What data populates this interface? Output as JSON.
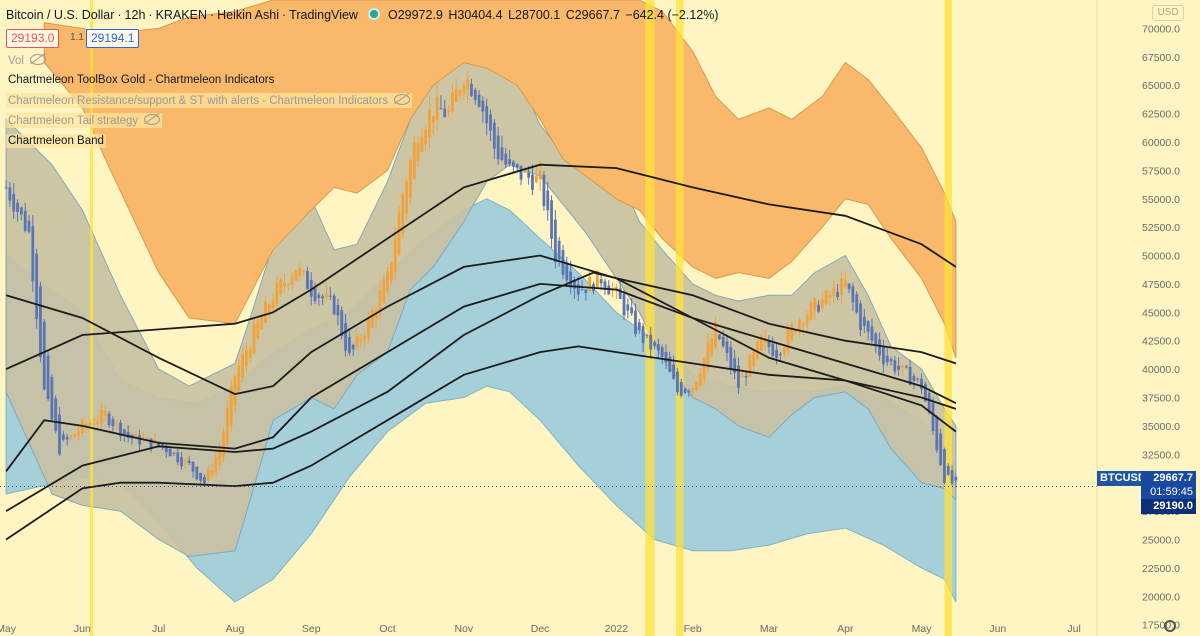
{
  "header": {
    "symbol": "Bitcoin / U.S. Dollar",
    "interval": "12h",
    "exchange": "KRAKEN",
    "style": "Heikin Ashi",
    "platform": "TradingView",
    "open": "O29972.9",
    "high": "H30404.4",
    "low": "L28700.1",
    "close": "C29667.7",
    "change": "−642.4 (−2.12%)"
  },
  "order_bar": {
    "sell": "29193.0",
    "spread": "1.1",
    "buy": "29194.1"
  },
  "indicators": [
    {
      "label": "Vol",
      "hidden": true
    },
    {
      "label": "Chartmeleon ToolBox Gold - Chartmeleon Indicators",
      "hidden": false
    },
    {
      "label": "Chartmeleon Resistance/support & ST with alerts - Chartmeleon Indicators",
      "hidden": true
    },
    {
      "label": "Chartmeleon Tail strategy",
      "hidden": true
    },
    {
      "label": "Chartmeleon Band",
      "hidden": false
    }
  ],
  "currency_menu": "USD",
  "price_tags": {
    "symbol": "BTCUSD",
    "last": "29667.7",
    "countdown": "01:59:45",
    "bid": "29190.0"
  },
  "colors": {
    "background": "#fff5c2",
    "orange_band": "#f9b86a",
    "grey_band": "#c9c1a3",
    "blue_band": "#a5cfd9",
    "highlight": "#ffe23a",
    "candle_up": "#f2a23c",
    "candle_down": "#5a74b4",
    "line": "#1c1c1c"
  },
  "chart_data": {
    "type": "line",
    "title": "Bitcoin / U.S. Dollar, 12h, KRAKEN, Heikin Ashi",
    "y_ticks": [
      17500,
      20000,
      22500,
      25000,
      27500,
      30000,
      32500,
      35000,
      37500,
      40000,
      42500,
      45000,
      47500,
      50000,
      52500,
      55000,
      57500,
      60000,
      62500,
      65000,
      67500,
      70000
    ],
    "y_tick_labels": [
      "17500.0",
      "20000.0",
      "22500.0",
      "25000.0",
      "27500.0",
      "30000.0",
      "32500.0",
      "35000.0",
      "37500.0",
      "40000.0",
      "42500.0",
      "45000.0",
      "47500.0",
      "50000.0",
      "52500.0",
      "55000.0",
      "57500.0",
      "60000.0",
      "62500.0",
      "65000.0",
      "67500.0",
      "70000.0"
    ],
    "ylim": [
      16500,
      72500
    ],
    "x_labels": [
      "May",
      "Jun",
      "Jul",
      "Aug",
      "Sep",
      "Oct",
      "Nov",
      "Dec",
      "2022",
      "Feb",
      "Mar",
      "Apr",
      "May",
      "Jun",
      "Jul"
    ],
    "x_label_months": [
      0,
      1,
      2,
      3,
      4,
      5,
      6,
      7,
      8,
      9,
      10,
      11,
      12,
      13,
      14
    ],
    "xlim": [
      -0.08,
      14.3
    ],
    "price_path": {
      "m": [
        0,
        0.3,
        0.5,
        0.7,
        1.0,
        1.3,
        1.6,
        1.9,
        2.1,
        2.4,
        2.6,
        2.8,
        3.0,
        3.3,
        3.5,
        3.8,
        4.0,
        4.3,
        4.5,
        4.7,
        5.0,
        5.2,
        5.4,
        5.6,
        5.8,
        6.0,
        6.2,
        6.4,
        6.6,
        6.8,
        7.0,
        7.2,
        7.5,
        7.8,
        8.0,
        8.3,
        8.6,
        8.8,
        9.0,
        9.3,
        9.6,
        9.9,
        10.1,
        10.4,
        10.7,
        10.9,
        11.0,
        11.2,
        11.5,
        11.8,
        12.0,
        12.15,
        12.3,
        12.45
      ],
      "close": [
        56000,
        52000,
        38000,
        33000,
        35000,
        36000,
        34000,
        33500,
        33000,
        31500,
        30000,
        33000,
        39500,
        44000,
        46500,
        49000,
        47000,
        45500,
        41000,
        43500,
        48000,
        55500,
        61000,
        63000,
        62500,
        66000,
        64000,
        59500,
        57500,
        57000,
        56500,
        50000,
        47000,
        48000,
        46500,
        43000,
        41000,
        38000,
        38500,
        43500,
        38500,
        42500,
        41500,
        44500,
        46000,
        47000,
        47500,
        44000,
        41000,
        39500,
        38500,
        34500,
        30500,
        29667
      ]
    },
    "overlay_series": [
      {
        "m": [
          0,
          1,
          2,
          3,
          3.5,
          4,
          5,
          6,
          7,
          8,
          9,
          10,
          11,
          12,
          12.45
        ],
        "values": [
          46500,
          44500,
          41000,
          37800,
          38500,
          41500,
          45500,
          49000,
          50000,
          48000,
          44500,
          41000,
          39000,
          36800,
          34500
        ]
      },
      {
        "m": [
          0,
          1,
          2,
          3,
          3.5,
          4,
          5,
          6,
          7,
          8,
          9,
          10,
          11,
          12,
          12.45
        ],
        "values": [
          40000,
          43000,
          43500,
          44000,
          45000,
          47000,
          51500,
          56000,
          58000,
          57700,
          56000,
          54500,
          53500,
          51000,
          49000
        ]
      },
      {
        "m": [
          0,
          0.5,
          1,
          2,
          3,
          3.5,
          4,
          5,
          6,
          7,
          8,
          9,
          10,
          11,
          12,
          12.45
        ],
        "values": [
          31000,
          35500,
          35000,
          33500,
          33000,
          34000,
          37500,
          41500,
          45500,
          47500,
          47000,
          44500,
          42500,
          40500,
          38500,
          37000
        ]
      },
      {
        "m": [
          0,
          1,
          1.5,
          2,
          3,
          3.5,
          4,
          5,
          6,
          7,
          7.5,
          8,
          9,
          10,
          11,
          12,
          12.45
        ],
        "values": [
          25000,
          29500,
          30000,
          30000,
          29700,
          30000,
          31500,
          35500,
          39500,
          41500,
          42000,
          41500,
          40500,
          39500,
          39000,
          37500,
          36500
        ]
      },
      {
        "m": [
          0,
          1,
          2,
          3,
          3.5,
          4,
          5,
          6,
          7,
          7.7,
          8,
          9,
          10,
          11,
          12,
          12.45
        ],
        "values": [
          27500,
          31500,
          33200,
          32700,
          33000,
          34500,
          38000,
          43000,
          46500,
          48500,
          48000,
          46500,
          44000,
          42500,
          41500,
          40500
        ]
      }
    ],
    "orange_band": {
      "m": [
        0.5,
        1,
        1.3,
        2,
        2.4,
        3,
        3.5,
        4,
        4.3,
        4.6,
        5,
        5.3,
        5.6,
        6,
        6.3,
        6.7,
        7,
        7.3,
        7.7,
        8,
        8.3,
        8.6,
        9,
        9.3,
        9.6,
        10,
        10.3,
        10.7,
        11,
        11.3,
        11.6,
        12,
        12.3,
        12.45
      ],
      "upper": [
        70500,
        70000,
        69500,
        70000,
        71000,
        71500,
        72500,
        72500,
        72500,
        72500,
        72500,
        72500,
        72500,
        72500,
        72500,
        72500,
        72500,
        72500,
        72500,
        72500,
        72500,
        71500,
        68000,
        64000,
        62000,
        63000,
        62000,
        64000,
        67000,
        65500,
        63000,
        59500,
        55500,
        53000
      ],
      "lower": [
        67000,
        63000,
        58500,
        48500,
        44500,
        44000,
        50500,
        54000,
        56000,
        55500,
        57500,
        62000,
        65000,
        67000,
        66500,
        65000,
        62000,
        58500,
        56500,
        55000,
        54000,
        51500,
        49000,
        48000,
        48500,
        48000,
        49500,
        52500,
        55000,
        54500,
        51500,
        48000,
        44000,
        41000
      ]
    },
    "grey_band": {
      "m": [
        0,
        0.3,
        0.6,
        1,
        1.5,
        2,
        2.4,
        3,
        3.2,
        3.5,
        4,
        4.3,
        4.6,
        5,
        5.3,
        5.6,
        6,
        6.3,
        6.6,
        7,
        7.3,
        7.6,
        8,
        8.3,
        8.6,
        9,
        9.3,
        9.6,
        10,
        10.3,
        10.6,
        11,
        11.3,
        11.6,
        12,
        12.3,
        12.45
      ],
      "upper": [
        62000,
        60000,
        58000,
        54000,
        46500,
        40000,
        38500,
        40500,
        44500,
        51000,
        55000,
        50500,
        51000,
        56500,
        62000,
        66000,
        68500,
        71000,
        67500,
        61500,
        59000,
        59000,
        57500,
        53000,
        50500,
        47500,
        46500,
        46000,
        46500,
        46500,
        48500,
        50000,
        46500,
        42000,
        40000,
        36500,
        35000
      ],
      "lower": [
        38000,
        33500,
        29000,
        28000,
        27500,
        25000,
        23500,
        24000,
        28500,
        35500,
        37500,
        36500,
        39500,
        41500,
        47000,
        49000,
        53000,
        56500,
        58000,
        57000,
        54500,
        52000,
        48000,
        45000,
        41000,
        37500,
        36500,
        35000,
        34000,
        36000,
        37500,
        38000,
        36500,
        33000,
        30000,
        29500,
        28500
      ]
    },
    "blue_band": {
      "m": [
        0,
        1,
        1.5,
        2,
        2.5,
        3,
        3.5,
        4,
        4.5,
        5,
        5.5,
        6,
        6.3,
        6.6,
        7,
        7.5,
        8,
        8.5,
        9,
        9.5,
        10,
        10.5,
        11,
        11.5,
        12,
        12.3,
        12.45
      ],
      "upper": [
        50000,
        45000,
        39000,
        37500,
        37000,
        38500,
        41500,
        43500,
        45000,
        48500,
        51500,
        54000,
        55000,
        54000,
        51500,
        48500,
        45000,
        42500,
        39500,
        38500,
        38000,
        38000,
        38500,
        37500,
        35500,
        33000,
        31500
      ],
      "lower": [
        29000,
        30500,
        30000,
        26500,
        22500,
        19500,
        21500,
        25500,
        30500,
        34500,
        37000,
        37500,
        38500,
        38000,
        35500,
        31500,
        28000,
        25000,
        24000,
        24000,
        24500,
        25500,
        26000,
        24500,
        22500,
        21500,
        19500
      ]
    },
    "highlight_zones": [
      {
        "m_start": 1.1,
        "m_end": 1.14
      },
      {
        "m_start": 8.38,
        "m_end": 8.5
      },
      {
        "m_start": 8.78,
        "m_end": 8.88
      },
      {
        "m_start": 12.3,
        "m_end": 12.4
      }
    ],
    "last_price": 29667.7,
    "grid": false
  }
}
